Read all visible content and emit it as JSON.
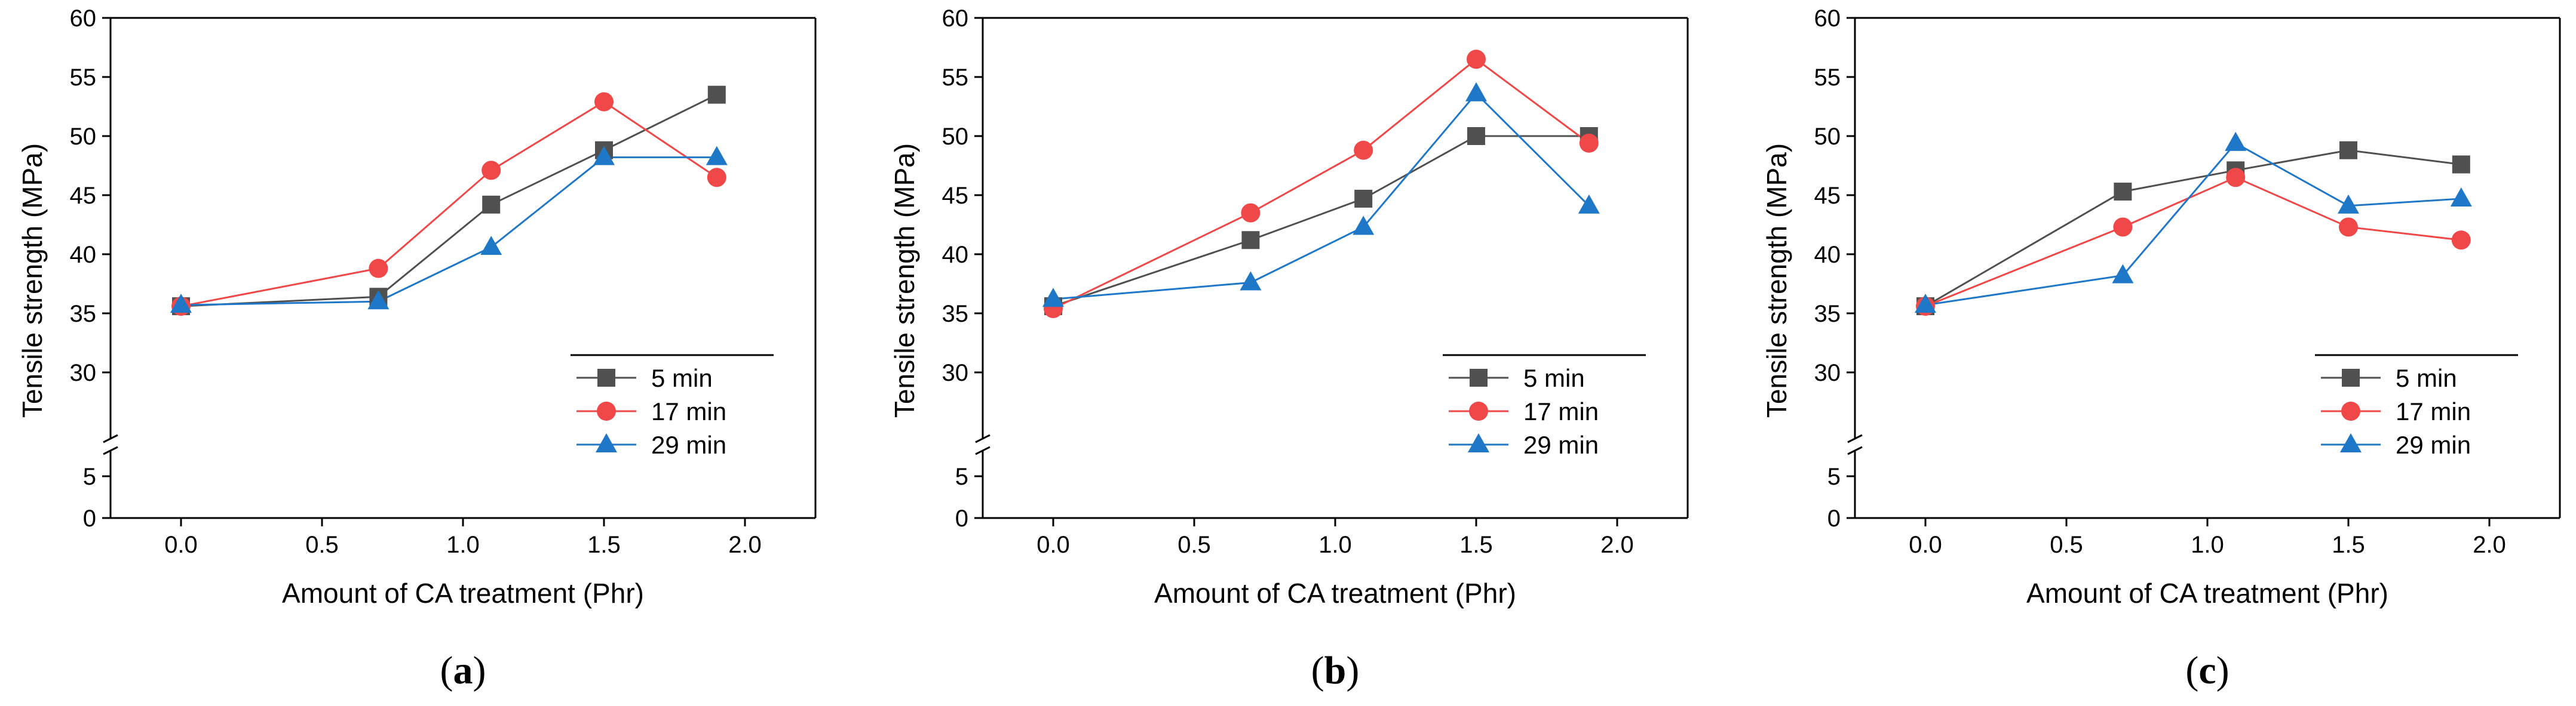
{
  "chart_data": [
    {
      "type": "line",
      "panel_label": "a",
      "xlabel": "Amount of CA treatment (Phr)",
      "ylabel": "Tensile strength (MPa)",
      "xlim": [
        -0.25,
        2.25
      ],
      "ylim_upper": [
        25,
        60
      ],
      "ylim_lower": [
        0,
        7
      ],
      "x_ticks": [
        "0.0",
        "0.5",
        "1.0",
        "1.5",
        "2.0"
      ],
      "y_ticks_upper": [
        "30",
        "35",
        "40",
        "45",
        "50",
        "55",
        "60"
      ],
      "y_ticks_lower": [
        "0",
        "5"
      ],
      "x": [
        0.0,
        0.7,
        1.1,
        1.5,
        1.9
      ],
      "series": [
        {
          "name": "5 min",
          "values": [
            35.6,
            36.4,
            44.2,
            48.8,
            53.5
          ],
          "color": "#505050",
          "marker": "square"
        },
        {
          "name": "17 min",
          "values": [
            35.6,
            38.8,
            47.1,
            52.9,
            46.5
          ],
          "color": "#f04848",
          "marker": "circle"
        },
        {
          "name": "29 min",
          "values": [
            35.7,
            36.0,
            40.6,
            48.2,
            48.2
          ],
          "color": "#1f77c8",
          "marker": "triangle"
        }
      ],
      "legend": "lower-right"
    },
    {
      "type": "line",
      "panel_label": "b",
      "xlabel": "Amount of CA treatment (Phr)",
      "ylabel": "Tensile strength (MPa)",
      "xlim": [
        -0.25,
        2.25
      ],
      "ylim_upper": [
        25,
        60
      ],
      "ylim_lower": [
        0,
        7
      ],
      "x_ticks": [
        "0.0",
        "0.5",
        "1.0",
        "1.5",
        "2.0"
      ],
      "y_ticks_upper": [
        "30",
        "35",
        "40",
        "45",
        "50",
        "55",
        "60"
      ],
      "y_ticks_lower": [
        "0",
        "5"
      ],
      "x": [
        0.0,
        0.7,
        1.1,
        1.5,
        1.9
      ],
      "series": [
        {
          "name": "5 min",
          "values": [
            35.6,
            41.2,
            44.7,
            50.0,
            50.0
          ],
          "color": "#505050",
          "marker": "square"
        },
        {
          "name": "17 min",
          "values": [
            35.4,
            43.5,
            48.8,
            56.5,
            49.4
          ],
          "color": "#f04848",
          "marker": "circle"
        },
        {
          "name": "29 min",
          "values": [
            36.2,
            37.6,
            42.3,
            53.6,
            44.1
          ],
          "color": "#1f77c8",
          "marker": "triangle"
        }
      ],
      "legend": "lower-right"
    },
    {
      "type": "line",
      "panel_label": "c",
      "xlabel": "Amount of CA treatment (Phr)",
      "ylabel": "Tensile strength (MPa)",
      "xlim": [
        -0.25,
        2.25
      ],
      "ylim_upper": [
        25,
        60
      ],
      "ylim_lower": [
        0,
        7
      ],
      "x_ticks": [
        "0.0",
        "0.5",
        "1.0",
        "1.5",
        "2.0"
      ],
      "y_ticks_upper": [
        "30",
        "35",
        "40",
        "45",
        "50",
        "55",
        "60"
      ],
      "y_ticks_lower": [
        "0",
        "5"
      ],
      "x": [
        0.0,
        0.7,
        1.1,
        1.5,
        1.9
      ],
      "series": [
        {
          "name": "5 min",
          "values": [
            35.6,
            45.3,
            47.1,
            48.8,
            47.6
          ],
          "color": "#505050",
          "marker": "square"
        },
        {
          "name": "17 min",
          "values": [
            35.6,
            42.3,
            46.5,
            42.3,
            41.2
          ],
          "color": "#f04848",
          "marker": "circle"
        },
        {
          "name": "29 min",
          "values": [
            35.7,
            38.2,
            49.4,
            44.1,
            44.7
          ],
          "color": "#1f77c8",
          "marker": "triangle"
        }
      ],
      "legend": "lower-right"
    }
  ]
}
